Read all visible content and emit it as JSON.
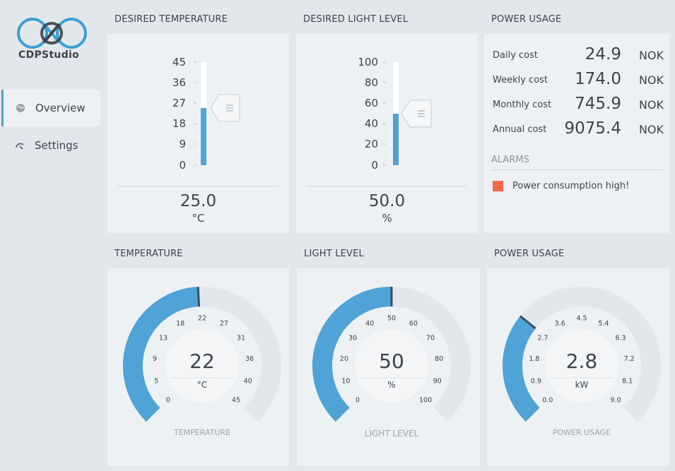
{
  "app": {
    "logo_text": "CDPStudio"
  },
  "sidebar": {
    "items": [
      {
        "label": "Overview",
        "icon": "globe-icon",
        "active": true
      },
      {
        "label": "Settings",
        "icon": "gauge-icon",
        "active": false
      }
    ]
  },
  "colors": {
    "accent": "#4fa3d6",
    "alarm": "#f26a4b",
    "track": "#e3e7eb"
  },
  "desired_temperature": {
    "title": "DESIRED TEMPERATURE",
    "ticks": [
      "45",
      "36",
      "27",
      "18",
      "9",
      "0"
    ],
    "min": 0,
    "max": 45,
    "value": 25.0,
    "value_text": "25.0",
    "unit": "°C"
  },
  "desired_light": {
    "title": "DESIRED LIGHT LEVEL",
    "ticks": [
      "100",
      "80",
      "60",
      "40",
      "20",
      "0"
    ],
    "min": 0,
    "max": 100,
    "value": 50.0,
    "value_text": "50.0",
    "unit": "%"
  },
  "power_usage_costs": {
    "title": "POWER USAGE",
    "rows": [
      {
        "label": "Daily cost",
        "value": "24.9",
        "unit": "NOK"
      },
      {
        "label": "Weekly cost",
        "value": "174.0",
        "unit": "NOK"
      },
      {
        "label": "Monthly cost",
        "value": "745.9",
        "unit": "NOK"
      },
      {
        "label": "Annual cost",
        "value": "9075.4",
        "unit": "NOK"
      }
    ],
    "alarms_title": "ALARMS",
    "alarms": [
      {
        "text": "Power consumption high!"
      }
    ]
  },
  "gauges": [
    {
      "title": "TEMPERATURE",
      "min": 0,
      "max": 45,
      "value": 22,
      "value_text": "22",
      "unit": "°C",
      "caption": "TEMPERATURE",
      "ticks": [
        "0",
        "5",
        "9",
        "13",
        "18",
        "22",
        "27",
        "31",
        "36",
        "40",
        "45"
      ]
    },
    {
      "title": "LIGHT LEVEL",
      "min": 0,
      "max": 100,
      "value": 50,
      "value_text": "50",
      "unit": "%",
      "caption": "LIGHT LEVEL",
      "ticks": [
        "0",
        "10",
        "20",
        "30",
        "40",
        "50",
        "60",
        "70",
        "80",
        "90",
        "100"
      ]
    },
    {
      "title": "POWER USAGE",
      "min": 0,
      "max": 9,
      "value": 2.8,
      "value_text": "2.8",
      "unit": "kW",
      "caption": "POWER USAGE",
      "ticks": [
        "0.0",
        "0.9",
        "1.8",
        "2.7",
        "3.6",
        "4.5",
        "5.4",
        "6.3",
        "7.2",
        "8.1",
        "9.0"
      ]
    }
  ]
}
